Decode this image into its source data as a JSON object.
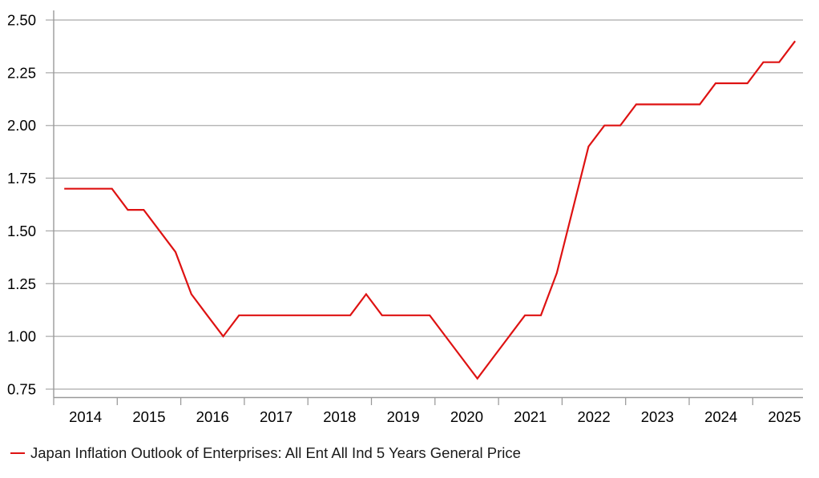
{
  "legend": {
    "label": "Japan Inflation Outlook of Enterprises: All Ent All Ind 5 Years General Price"
  },
  "colors": {
    "line": "#de1212",
    "grid": "#ababab",
    "axis": "#999999",
    "text": "#000000"
  },
  "chart_data": {
    "type": "line",
    "title": "",
    "xlabel": "",
    "ylabel": "",
    "legend_position": "bottom-left",
    "grid": "horizontal",
    "ylim": [
      0.75,
      2.5
    ],
    "y_ticks": [
      2.5,
      2.25,
      2.0,
      1.75,
      1.5,
      1.25,
      1.0,
      0.75
    ],
    "x_ticks": [
      2014,
      2015,
      2016,
      2017,
      2018,
      2019,
      2020,
      2021,
      2022,
      2023,
      2024,
      2025
    ],
    "x_dates": [
      "2014-03",
      "2014-06",
      "2014-09",
      "2014-12",
      "2015-03",
      "2015-06",
      "2015-09",
      "2015-12",
      "2016-03",
      "2016-06",
      "2016-09",
      "2016-12",
      "2017-03",
      "2017-06",
      "2017-09",
      "2017-12",
      "2018-03",
      "2018-06",
      "2018-09",
      "2018-12",
      "2019-03",
      "2019-06",
      "2019-09",
      "2019-12",
      "2020-03",
      "2020-06",
      "2020-09",
      "2020-12",
      "2021-03",
      "2021-06",
      "2021-09",
      "2021-12",
      "2022-03",
      "2022-06",
      "2022-09",
      "2022-12",
      "2023-03",
      "2023-06",
      "2023-09",
      "2023-12",
      "2024-03",
      "2024-06",
      "2024-09",
      "2024-12",
      "2025-03",
      "2025-06",
      "2025-09"
    ],
    "series": [
      {
        "name": "Japan Inflation Outlook of Enterprises: All Ent All Ind 5 Years General Price",
        "color": "#de1212",
        "values": [
          1.7,
          1.7,
          1.7,
          1.7,
          1.6,
          1.6,
          1.5,
          1.4,
          1.2,
          1.1,
          1.0,
          1.1,
          1.1,
          1.1,
          1.1,
          1.1,
          1.1,
          1.1,
          1.1,
          1.2,
          1.1,
          1.1,
          1.1,
          1.1,
          1.0,
          0.9,
          0.8,
          0.9,
          1.0,
          1.1,
          1.1,
          1.3,
          1.6,
          1.9,
          2.0,
          2.0,
          2.1,
          2.1,
          2.1,
          2.1,
          2.1,
          2.2,
          2.2,
          2.2,
          2.3,
          2.3,
          2.4
        ]
      }
    ]
  }
}
